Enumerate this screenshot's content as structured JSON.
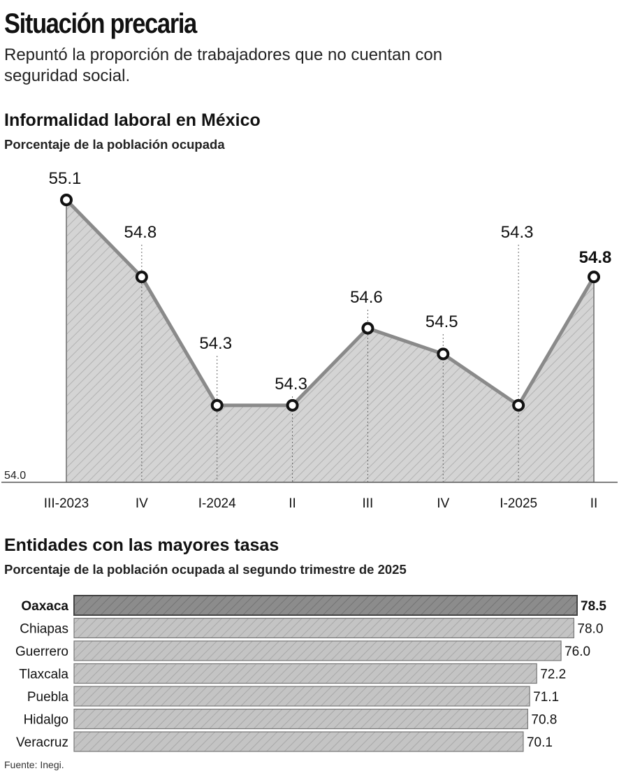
{
  "header": {
    "title": "Situación precaria",
    "subtitle": "Repuntó la proporción de trabajadores que no cuentan con seguridad social."
  },
  "source": "Fuente: Inegi.",
  "colors": {
    "fill": "#d4d4d4",
    "line": "#8a8a8a",
    "bar": "#c4c4c4",
    "bar_highlight": "#8c8c8c",
    "text": "#111111"
  },
  "chart_data": [
    {
      "type": "area",
      "title": "Informalidad laboral en México",
      "subtitle": "Porcentaje de la población ocupada",
      "categories": [
        "III-2023",
        "IV",
        "I-2024",
        "II",
        "III",
        "IV",
        "I-2025",
        "II"
      ],
      "values": [
        55.1,
        54.8,
        54.3,
        54.3,
        54.6,
        54.5,
        54.3,
        54.8
      ],
      "labels": [
        "55.1",
        "54.8",
        "54.3",
        "54.3",
        "54.6",
        "54.5",
        "54.3",
        "54.8"
      ],
      "highlight_last": true,
      "ylim": [
        54.0,
        55.1
      ],
      "y_baseline_label": "54.0",
      "grid": false
    },
    {
      "type": "bar",
      "orientation": "horizontal",
      "title": "Entidades con las mayores tasas",
      "subtitle": "Porcentaje de la población ocupada al segundo trimestre de 2025",
      "categories": [
        "Oaxaca",
        "Chiapas",
        "Guerrero",
        "Tlaxcala",
        "Puebla",
        "Hidalgo",
        "Veracruz"
      ],
      "values": [
        78.5,
        78.0,
        76.0,
        72.2,
        71.1,
        70.8,
        70.1
      ],
      "labels": [
        "78.5",
        "78.0",
        "76.0",
        "72.2",
        "71.1",
        "70.8",
        "70.1"
      ],
      "highlight_first": true
    }
  ]
}
